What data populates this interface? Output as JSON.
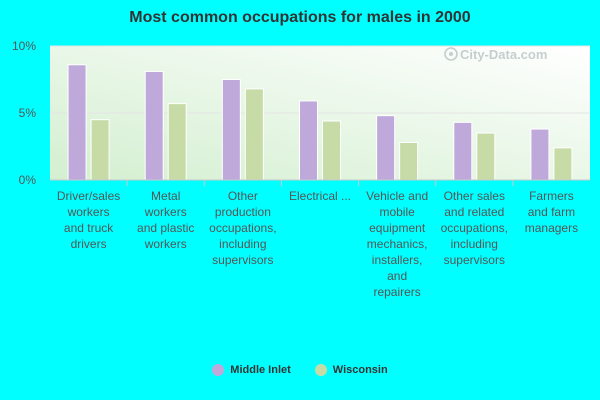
{
  "chart_data": {
    "type": "bar",
    "title": "Most common occupations for males in 2000",
    "ylim": [
      0,
      10
    ],
    "yticks": [
      "0%",
      "5%",
      "10%"
    ],
    "categories": [
      [
        "Driver/sales",
        "workers",
        "and truck",
        "drivers"
      ],
      [
        "Metal",
        "workers",
        "and plastic",
        "workers"
      ],
      [
        "Other",
        "production",
        "occupations,",
        "including",
        "supervisors"
      ],
      [
        "Electrical ..."
      ],
      [
        "Vehicle and",
        "mobile",
        "equipment",
        "mechanics,",
        "installers,",
        "and",
        "repairers"
      ],
      [
        "Other sales",
        "and related",
        "occupations,",
        "including",
        "supervisors"
      ],
      [
        "Farmers",
        "and farm",
        "managers"
      ]
    ],
    "series": [
      {
        "name": "Middle Inlet",
        "color": "#BFA9DB",
        "values": [
          8.6,
          8.1,
          7.5,
          5.9,
          4.8,
          4.3,
          3.8
        ]
      },
      {
        "name": "Wisconsin",
        "color": "#C7DBA7",
        "values": [
          4.5,
          5.7,
          6.8,
          4.4,
          2.8,
          3.5,
          2.4
        ]
      }
    ],
    "grid": true,
    "legend_position": "bottom",
    "watermark": "City-Data.com"
  }
}
